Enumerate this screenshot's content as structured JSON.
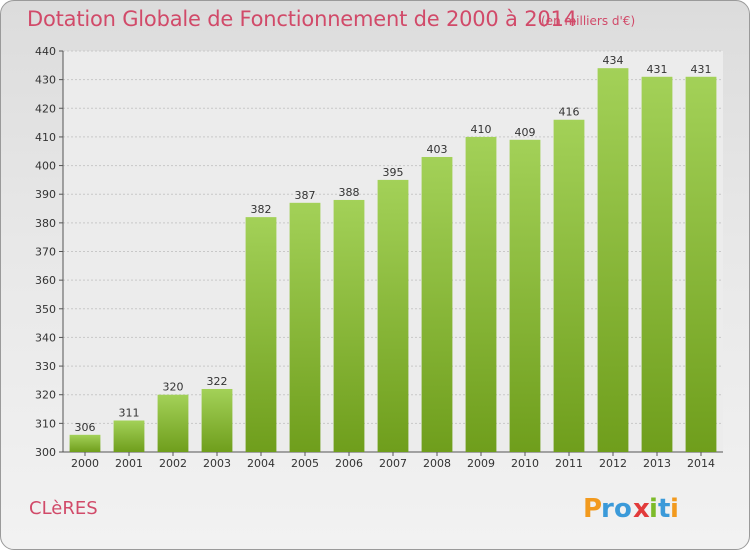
{
  "header": {
    "title": "Dotation Globale de Fonctionnement de 2000 à 2014",
    "unit": "(en milliers d'€)"
  },
  "footer": {
    "commune": "CLèRES",
    "logo_text": "Proxiti"
  },
  "colors": {
    "title": "#d14a69",
    "bar_top": "#a3d158",
    "bar_bottom": "#6f9e1c",
    "grid": "#c8c8c8"
  },
  "chart_data": {
    "type": "bar",
    "title": "Dotation Globale de Fonctionnement de 2000 à 2014",
    "xlabel": "",
    "ylabel": "",
    "categories": [
      "2000",
      "2001",
      "2002",
      "2003",
      "2004",
      "2005",
      "2006",
      "2007",
      "2008",
      "2009",
      "2010",
      "2011",
      "2012",
      "2013",
      "2014"
    ],
    "values": [
      306,
      311,
      320,
      322,
      382,
      387,
      388,
      395,
      403,
      410,
      409,
      416,
      434,
      431,
      431
    ],
    "ylim": [
      300,
      440
    ],
    "yticks": [
      300,
      310,
      320,
      330,
      340,
      350,
      360,
      370,
      380,
      390,
      400,
      410,
      420,
      430,
      440
    ],
    "grid": true,
    "data_labels": true
  }
}
